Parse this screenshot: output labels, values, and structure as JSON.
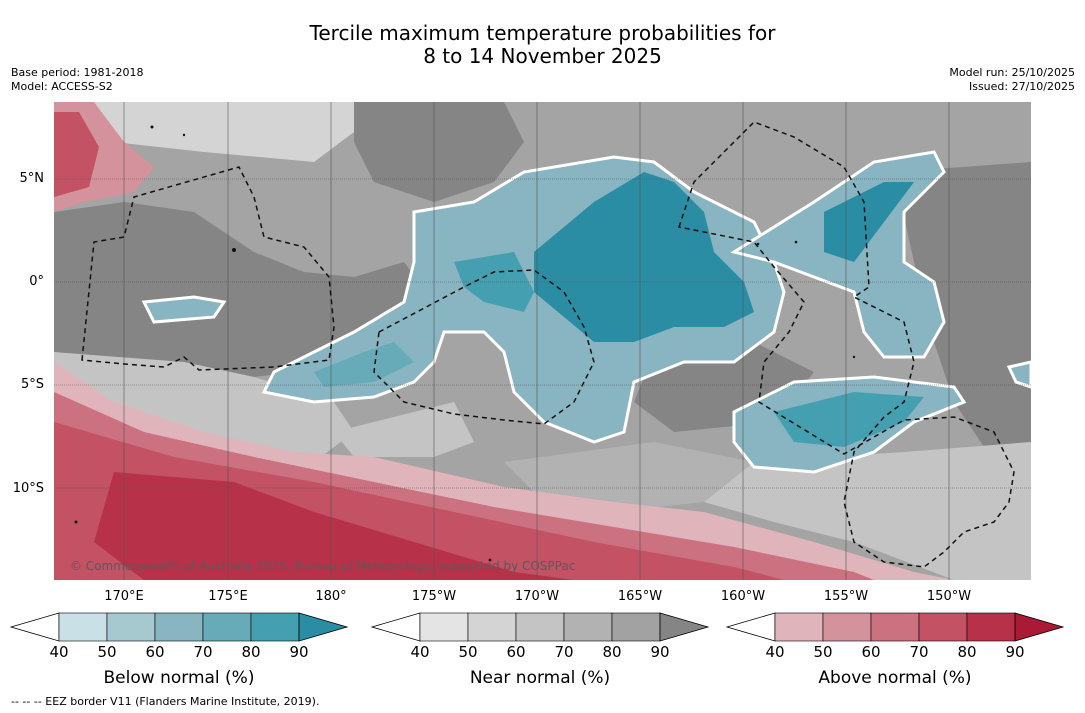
{
  "title": {
    "line1": "Tercile maximum temperature probabilities for",
    "line2": "8 to 14 November 2025"
  },
  "meta_left": {
    "base_period": "Base period: 1981-2018",
    "model": "Model: ACCESS-S2"
  },
  "meta_right": {
    "model_run": "Model run: 25/10/2025",
    "issued": "Issued: 27/10/2025"
  },
  "map": {
    "latitude_labels": [
      "5°N",
      "0°",
      "5°S",
      "10°S"
    ],
    "longitude_labels": [
      "170°E",
      "175°E",
      "180°",
      "175°W",
      "170°W",
      "165°W",
      "160°W",
      "155°W",
      "150°W"
    ],
    "copyright": "© Commonwealth of Australia 2025, Bureau of Meteorology, supported by COSPPac",
    "background_color": "#a4a4a4"
  },
  "colorbars": [
    {
      "label": "Below normal (%)",
      "ticks": [
        "40",
        "50",
        "60",
        "70",
        "80",
        "90"
      ],
      "colors": [
        "#c8e0e6",
        "#a6c8cf",
        "#88b5c1",
        "#68abb8",
        "#44a0b0",
        "#2a8da3"
      ]
    },
    {
      "label": "Near normal (%)",
      "ticks": [
        "40",
        "50",
        "60",
        "70",
        "80",
        "90"
      ],
      "colors": [
        "#e4e4e4",
        "#d4d4d4",
        "#c4c4c4",
        "#b2b2b2",
        "#a2a2a2",
        "#858585"
      ]
    },
    {
      "label": "Above normal (%)",
      "ticks": [
        "40",
        "50",
        "60",
        "70",
        "80",
        "90"
      ],
      "colors": [
        "#e0b4bb",
        "#d4929c",
        "#cb717f",
        "#c25264",
        "#b73249",
        "#aa1a35"
      ]
    }
  ],
  "legend": {
    "eez": "--  --  -- EEZ border V11 (Flanders Marine Institute, 2019)."
  }
}
